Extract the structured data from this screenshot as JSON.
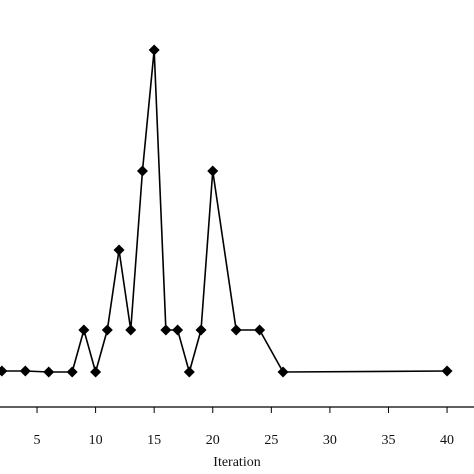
{
  "chart_data": {
    "type": "line",
    "x_label": "Iteration",
    "x": [
      2,
      4,
      6,
      8,
      9,
      10,
      11,
      12,
      13,
      14,
      15,
      16,
      17,
      18,
      19,
      20,
      22,
      24,
      26,
      40
    ],
    "series": [
      {
        "color": "#000000",
        "values": [
          3.6,
          3.6,
          3.5,
          3.5,
          7.7,
          3.5,
          7.7,
          15.7,
          7.7,
          23.6,
          35.7,
          7.7,
          7.7,
          3.5,
          7.7,
          23.6,
          7.7,
          7.7,
          3.5,
          3.6
        ]
      }
    ],
    "xlim": [
      1.84,
      42.3
    ],
    "ylim": [
      0,
      40.7
    ],
    "xticks": [
      5,
      10,
      15,
      20,
      25,
      30,
      35,
      40
    ]
  }
}
